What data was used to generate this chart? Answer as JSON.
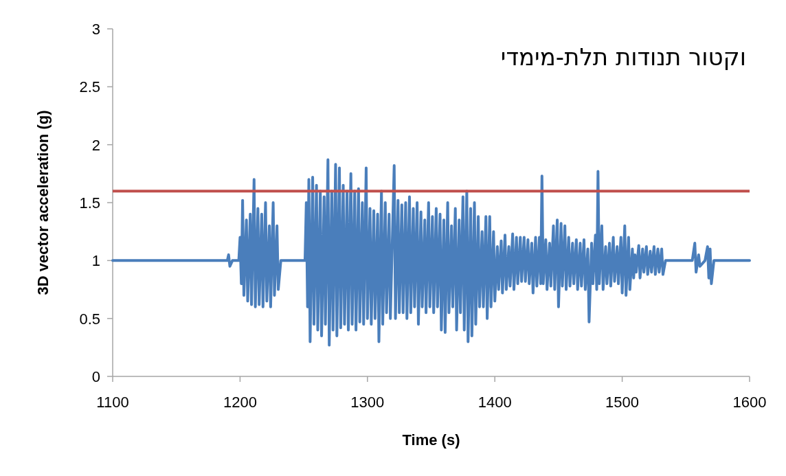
{
  "chart_data": {
    "type": "line",
    "title": "וקטור תנודות תלת-מימדי",
    "xlabel": "Time (s)",
    "ylabel": "3D vector acceleration (g)",
    "xlim": [
      1100,
      1600
    ],
    "xticks": [
      1100,
      1200,
      1300,
      1400,
      1500,
      1600
    ],
    "ylim": [
      0,
      3
    ],
    "yticks": [
      0,
      0.5,
      1,
      1.5,
      2,
      2.5,
      3
    ],
    "ref_lines": [
      {
        "axis": "y",
        "value": 1.6,
        "color": "#c0504d"
      }
    ],
    "series": [
      {
        "color": "#4a7ebb",
        "x": [
          1100,
          1190,
          1191,
          1192,
          1194,
          1199,
          1200,
          1201,
          1202,
          1203,
          1205,
          1206,
          1208,
          1209,
          1211,
          1212,
          1214,
          1215,
          1217,
          1218,
          1220,
          1221,
          1223,
          1224,
          1226,
          1227,
          1229,
          1230,
          1232,
          1233,
          1250,
          1251,
          1252,
          1253,
          1254,
          1255,
          1257,
          1258,
          1260,
          1261,
          1263,
          1264,
          1266,
          1267,
          1269,
          1270,
          1272,
          1273,
          1275,
          1276,
          1278,
          1279,
          1281,
          1282,
          1284,
          1285,
          1287,
          1288,
          1290,
          1291,
          1293,
          1294,
          1296,
          1297,
          1299,
          1300,
          1302,
          1303,
          1305,
          1306,
          1308,
          1309,
          1311,
          1312,
          1314,
          1315,
          1317,
          1318,
          1321,
          1322,
          1324,
          1325,
          1327,
          1328,
          1330,
          1331,
          1333,
          1334,
          1336,
          1337,
          1339,
          1340,
          1342,
          1343,
          1345,
          1346,
          1348,
          1349,
          1351,
          1352,
          1354,
          1355,
          1357,
          1358,
          1360,
          1361,
          1363,
          1364,
          1366,
          1367,
          1369,
          1370,
          1372,
          1373,
          1375,
          1376,
          1378,
          1379,
          1381,
          1382,
          1384,
          1385,
          1387,
          1388,
          1390,
          1391,
          1393,
          1394,
          1396,
          1397,
          1399,
          1400,
          1402,
          1403,
          1405,
          1406,
          1408,
          1409,
          1411,
          1412,
          1414,
          1415,
          1417,
          1418,
          1420,
          1421,
          1423,
          1424,
          1426,
          1427,
          1429,
          1430,
          1432,
          1433,
          1435,
          1436,
          1437,
          1438,
          1440,
          1441,
          1443,
          1444,
          1446,
          1447,
          1449,
          1450,
          1452,
          1453,
          1455,
          1456,
          1458,
          1459,
          1461,
          1462,
          1464,
          1465,
          1467,
          1468,
          1470,
          1471,
          1473,
          1474,
          1476,
          1477,
          1479,
          1480,
          1481,
          1482,
          1484,
          1485,
          1487,
          1488,
          1490,
          1491,
          1493,
          1494,
          1496,
          1497,
          1499,
          1500,
          1502,
          1503,
          1505,
          1506,
          1508,
          1509,
          1510,
          1511,
          1513,
          1514,
          1516,
          1517,
          1519,
          1520,
          1522,
          1523,
          1525,
          1526,
          1528,
          1529,
          1531,
          1532,
          1534,
          1555,
          1557,
          1558,
          1560,
          1561,
          1565,
          1567,
          1568,
          1569,
          1570,
          1572,
          1600
        ],
        "values": [
          1.0,
          1.0,
          1.05,
          0.95,
          1.0,
          1.0,
          1.2,
          0.8,
          1.52,
          0.7,
          1.35,
          0.65,
          1.4,
          0.62,
          1.7,
          0.6,
          1.45,
          0.62,
          1.4,
          0.6,
          1.5,
          0.65,
          1.3,
          0.6,
          1.5,
          0.7,
          1.3,
          0.75,
          1.0,
          1.0,
          1.0,
          1.0,
          1.5,
          0.6,
          1.7,
          0.3,
          1.72,
          0.45,
          1.65,
          0.4,
          1.6,
          0.35,
          1.55,
          0.45,
          1.87,
          0.27,
          1.6,
          0.4,
          1.83,
          0.35,
          1.8,
          0.42,
          1.65,
          0.45,
          1.6,
          0.4,
          1.75,
          0.45,
          1.6,
          0.4,
          1.62,
          0.47,
          1.5,
          0.45,
          1.8,
          0.5,
          1.45,
          0.45,
          1.43,
          0.5,
          1.4,
          0.3,
          1.6,
          0.45,
          1.5,
          0.55,
          1.4,
          0.5,
          1.82,
          0.5,
          1.52,
          0.55,
          1.48,
          0.55,
          1.5,
          0.5,
          1.55,
          0.55,
          1.45,
          0.6,
          1.5,
          0.45,
          1.42,
          0.6,
          1.35,
          0.55,
          1.5,
          0.6,
          1.38,
          0.55,
          1.45,
          0.6,
          1.4,
          0.4,
          1.35,
          0.38,
          1.5,
          0.55,
          1.3,
          0.6,
          1.45,
          0.4,
          1.35,
          0.55,
          1.55,
          0.4,
          1.6,
          0.3,
          1.45,
          0.35,
          1.5,
          0.45,
          1.38,
          0.6,
          1.25,
          0.6,
          1.38,
          0.5,
          1.38,
          0.6,
          1.25,
          0.65,
          1.12,
          0.75,
          1.17,
          0.72,
          1.22,
          0.75,
          1.12,
          0.78,
          1.23,
          0.75,
          1.2,
          0.8,
          1.2,
          0.82,
          1.2,
          0.82,
          1.18,
          0.8,
          1.15,
          0.72,
          1.2,
          0.78,
          1.2,
          0.8,
          1.73,
          0.8,
          1.18,
          0.75,
          1.15,
          0.78,
          1.3,
          0.75,
          1.35,
          0.6,
          1.32,
          0.78,
          1.3,
          0.75,
          1.2,
          0.78,
          1.15,
          0.8,
          1.18,
          0.75,
          1.15,
          0.78,
          1.18,
          0.75,
          1.1,
          0.47,
          1.15,
          0.8,
          1.22,
          0.75,
          1.77,
          0.8,
          1.3,
          0.75,
          1.12,
          0.8,
          1.15,
          0.78,
          1.2,
          0.82,
          1.12,
          0.8,
          1.2,
          0.72,
          1.3,
          0.7,
          1.2,
          0.75,
          1.1,
          0.85,
          1.05,
          0.9,
          1.13,
          0.85,
          1.1,
          0.9,
          1.12,
          0.88,
          1.08,
          0.9,
          1.12,
          0.88,
          1.1,
          0.9,
          1.1,
          0.88,
          1.0,
          1.0,
          1.15,
          0.9,
          1.05,
          0.95,
          1.0,
          1.12,
          0.85,
          1.1,
          0.8,
          1.0,
          1.0
        ]
      }
    ]
  }
}
